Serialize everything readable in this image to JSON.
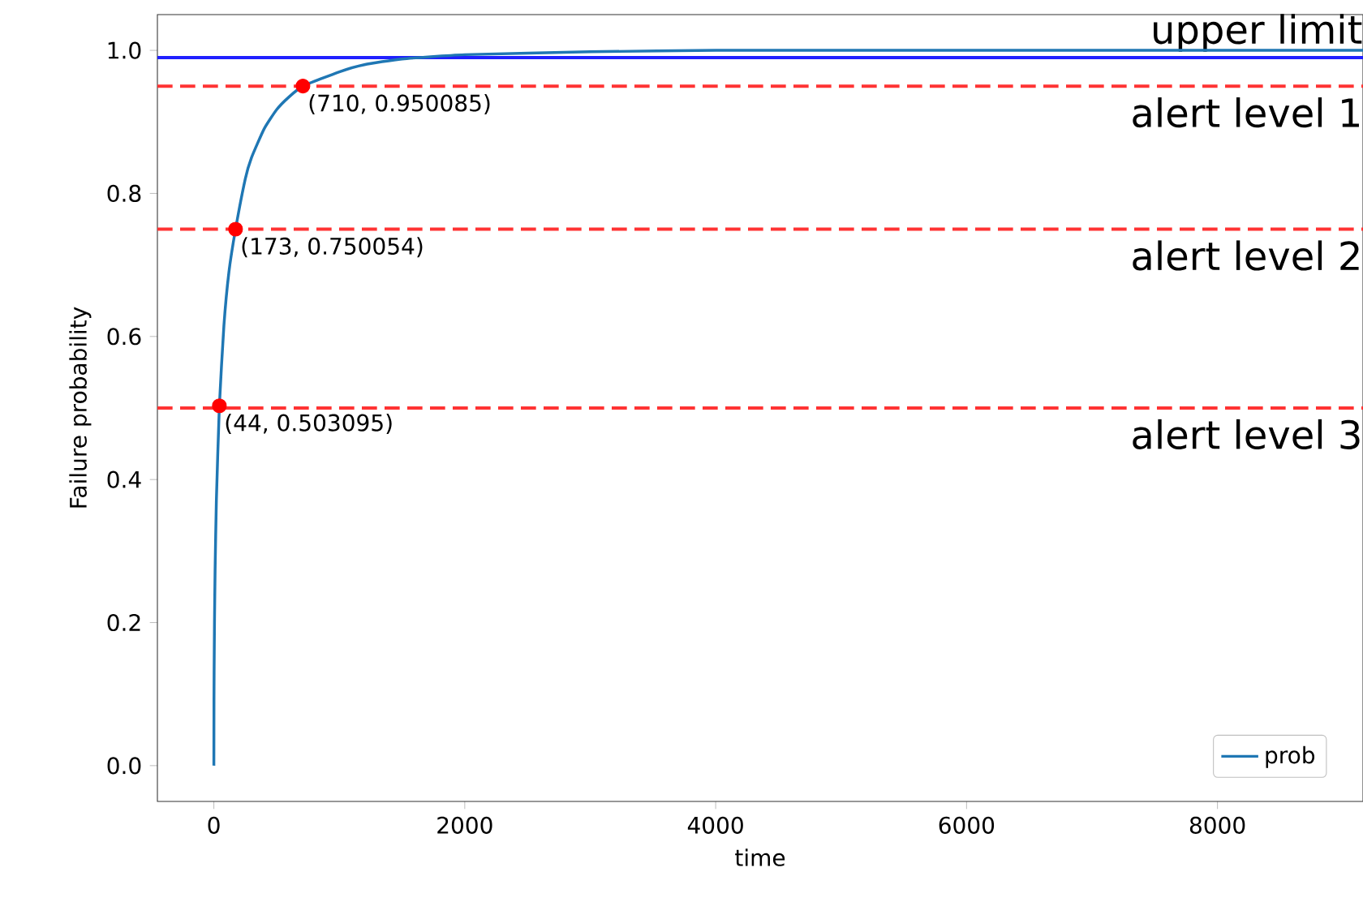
{
  "chart_data": {
    "type": "line",
    "xlabel": "time",
    "ylabel": "Failure probability",
    "xlim": [
      -450,
      9160
    ],
    "ylim": [
      -0.05,
      1.05
    ],
    "xticks": [
      0,
      2000,
      4000,
      6000,
      8000
    ],
    "yticks": [
      {
        "value": 0,
        "label": "0.0"
      },
      {
        "value": 0.2,
        "label": "0.2"
      },
      {
        "value": 0.4,
        "label": "0.4"
      },
      {
        "value": 0.6,
        "label": "0.6"
      },
      {
        "value": 0.8,
        "label": "0.8"
      },
      {
        "value": 1,
        "label": "1.0"
      }
    ],
    "legend": "bottom right",
    "series": [
      {
        "name": "prob",
        "color": "#1f77b4",
        "x": [
          0,
          1,
          2,
          5,
          10,
          20,
          44,
          80,
          120,
          173,
          250,
          300,
          400,
          500,
          600,
          710,
          1000,
          1200,
          1500,
          2000,
          3000,
          4000,
          6000,
          9160
        ],
        "values": [
          0,
          0.09,
          0.13,
          0.2,
          0.275,
          0.37,
          0.503,
          0.615,
          0.69,
          0.75,
          0.82,
          0.85,
          0.89,
          0.917,
          0.935,
          0.95,
          0.97,
          0.98,
          0.988,
          0.994,
          0.998,
          1.0,
          1.0,
          1.0
        ]
      },
      {
        "type": "scatter",
        "marker": "circle",
        "color": "#ff0000",
        "x": [
          44,
          173,
          710
        ],
        "values": [
          0.503095,
          0.750054,
          0.950085
        ]
      }
    ],
    "ref_lines": [
      {
        "axis": "y",
        "value": 0.99,
        "label": "upper limit",
        "color": "#2020ff",
        "line_style": "solid"
      },
      {
        "axis": "y",
        "value": 0.95,
        "label": "alert level 1",
        "color": "#ff3333",
        "line_style": "dashed"
      },
      {
        "axis": "y",
        "value": 0.75,
        "label": "alert level 2",
        "color": "#ff3333",
        "line_style": "dashed"
      },
      {
        "axis": "y",
        "value": 0.5,
        "label": "alert level 3",
        "color": "#ff3333",
        "line_style": "dashed"
      }
    ],
    "annotations": [
      {
        "text": "(710, 0.950085)",
        "x": 710,
        "y": 0.950085
      },
      {
        "text": "(173, 0.750054)",
        "x": 173,
        "y": 0.750054
      },
      {
        "text": "(44, 0.503095)",
        "x": 44,
        "y": 0.503095
      }
    ]
  }
}
